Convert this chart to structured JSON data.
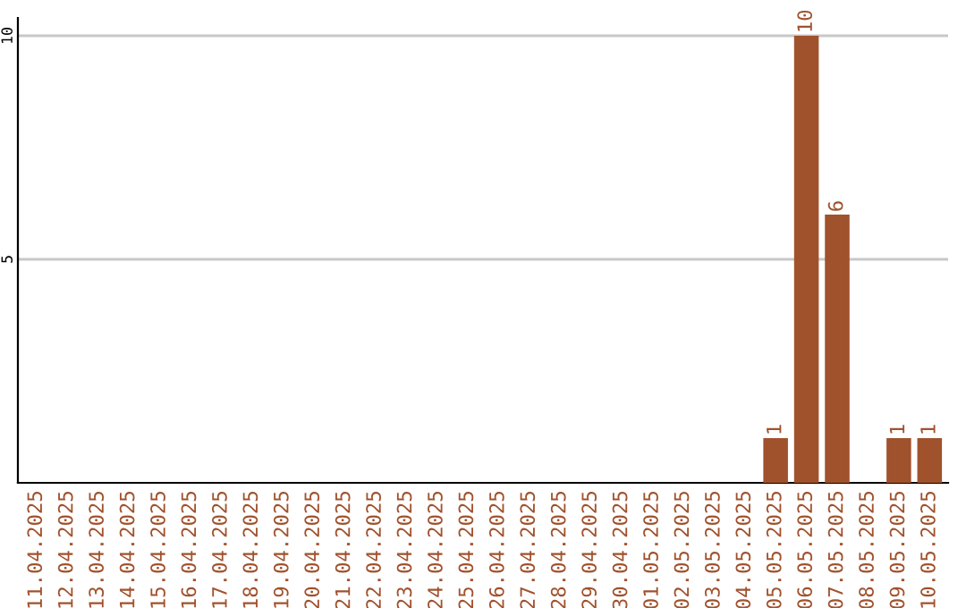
{
  "chart_data": {
    "type": "bar",
    "categories": [
      "11.04.2025",
      "12.04.2025",
      "13.04.2025",
      "14.04.2025",
      "15.04.2025",
      "16.04.2025",
      "17.04.2025",
      "18.04.2025",
      "19.04.2025",
      "20.04.2025",
      "21.04.2025",
      "22.04.2025",
      "23.04.2025",
      "24.04.2025",
      "25.04.2025",
      "26.04.2025",
      "27.04.2025",
      "28.04.2025",
      "29.04.2025",
      "30.04.2025",
      "01.05.2025",
      "02.05.2025",
      "03.05.2025",
      "04.05.2025",
      "05.05.2025",
      "06.05.2025",
      "07.05.2025",
      "08.05.2025",
      "09.05.2025",
      "10.05.2025"
    ],
    "values": [
      0,
      0,
      0,
      0,
      0,
      0,
      0,
      0,
      0,
      0,
      0,
      0,
      0,
      0,
      0,
      0,
      0,
      0,
      0,
      0,
      0,
      0,
      0,
      0,
      1,
      10,
      6,
      0,
      1,
      1
    ],
    "value_labels": [
      null,
      null,
      null,
      null,
      null,
      null,
      null,
      null,
      null,
      null,
      null,
      null,
      null,
      null,
      null,
      null,
      null,
      null,
      null,
      null,
      null,
      null,
      null,
      null,
      "1",
      "10",
      "6",
      null,
      "1",
      "1"
    ],
    "color": "#a0522d",
    "ylim": [
      0,
      10.4
    ],
    "yticks": [
      5,
      10
    ],
    "grid": "y"
  }
}
